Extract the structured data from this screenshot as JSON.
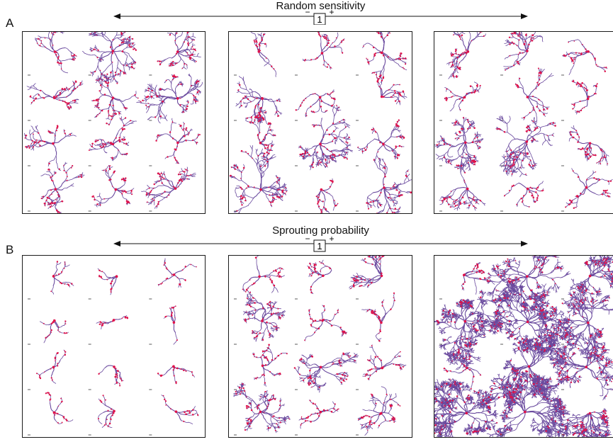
{
  "sections": [
    {
      "letter": "A",
      "axis": {
        "title": "Random sensitivity",
        "minus": "−",
        "value": "1",
        "plus": "+"
      },
      "panels": [
        {
          "density": [
            0.55,
            0.9,
            0.65,
            0.6,
            0.7,
            0.8,
            0.45,
            0.6,
            0.35,
            0.7,
            0.55,
            0.7
          ]
        },
        {
          "density": [
            0.3,
            0.35,
            0.6,
            0.75,
            0.35,
            0.3,
            0.35,
            0.85,
            0.45,
            0.85,
            0.35,
            0.75
          ]
        },
        {
          "density": [
            0.65,
            0.6,
            0.35,
            0.3,
            0.35,
            0.4,
            0.85,
            0.9,
            0.55,
            0.5,
            0.3,
            0.45
          ]
        }
      ]
    },
    {
      "letter": "B",
      "axis": {
        "title": "Sprouting probability",
        "minus": "−",
        "value": "1",
        "plus": "+"
      },
      "panels": [
        {
          "density": [
            0.12,
            0.15,
            0.18,
            0.15,
            0.08,
            0.12,
            0.15,
            0.18,
            0.15,
            0.2,
            0.1,
            0.12
          ]
        },
        {
          "density": [
            0.35,
            0.35,
            0.65,
            0.75,
            0.35,
            0.3,
            0.4,
            0.75,
            0.45,
            0.85,
            0.35,
            0.6
          ]
        },
        {
          "density": [
            0.35,
            1.15,
            1.2,
            1.35,
            1.25,
            1.2,
            0.25,
            1.3,
            1.1,
            1.4,
            1.25,
            1.15
          ]
        }
      ]
    }
  ],
  "colors": {
    "magenta": "#e0114a",
    "violet": "#6a4a9e",
    "border": "#1a1a1a",
    "axis": "#111111"
  },
  "icon_names": [
    "double-headed-arrow-icon",
    "neuron-morphology-icon",
    "scale-bar-icon"
  ]
}
